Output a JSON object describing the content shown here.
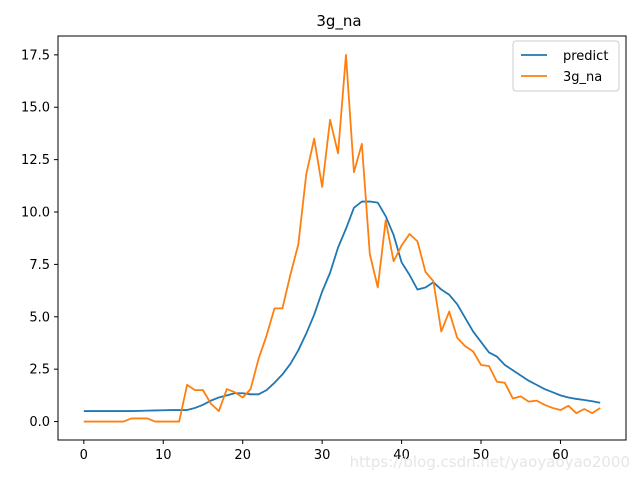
{
  "chart_data": {
    "type": "line",
    "title": "3g_na",
    "xlabel": "",
    "ylabel": "",
    "xlim": [
      -3.25,
      68.25
    ],
    "ylim": [
      -0.88,
      18.4
    ],
    "x_ticks": [
      0,
      10,
      20,
      30,
      40,
      50,
      60
    ],
    "y_ticks": [
      0.0,
      2.5,
      5.0,
      7.5,
      10.0,
      12.5,
      15.0,
      17.5
    ],
    "y_tick_labels": [
      "0.0",
      "2.5",
      "5.0",
      "7.5",
      "10.0",
      "12.5",
      "15.0",
      "17.5"
    ],
    "grid": false,
    "legend_position": "top-right",
    "series": [
      {
        "name": "predict",
        "color": "#1f77b4",
        "x": [
          0,
          1,
          2,
          3,
          4,
          5,
          6,
          7,
          8,
          9,
          10,
          11,
          12,
          13,
          14,
          15,
          16,
          17,
          18,
          19,
          20,
          21,
          22,
          23,
          24,
          25,
          26,
          27,
          28,
          29,
          30,
          31,
          32,
          33,
          34,
          35,
          36,
          37,
          38,
          39,
          40,
          41,
          42,
          43,
          44,
          45,
          46,
          47,
          48,
          49,
          50,
          51,
          52,
          53,
          54,
          55,
          56,
          57,
          58,
          59,
          60,
          61,
          62,
          63,
          64,
          65
        ],
        "y": [
          0.5,
          0.5,
          0.5,
          0.5,
          0.5,
          0.5,
          0.5,
          0.51,
          0.52,
          0.53,
          0.54,
          0.55,
          0.55,
          0.55,
          0.65,
          0.8,
          1.0,
          1.15,
          1.25,
          1.35,
          1.35,
          1.3,
          1.3,
          1.5,
          1.85,
          2.25,
          2.75,
          3.4,
          4.2,
          5.1,
          6.2,
          7.1,
          8.3,
          9.2,
          10.2,
          10.5,
          10.5,
          10.45,
          9.8,
          8.9,
          7.6,
          7.0,
          6.3,
          6.4,
          6.65,
          6.3,
          6.05,
          5.6,
          4.95,
          4.3,
          3.8,
          3.3,
          3.1,
          2.7,
          2.45,
          2.2,
          1.95,
          1.75,
          1.55,
          1.4,
          1.25,
          1.15,
          1.08,
          1.03,
          0.97,
          0.9
        ]
      },
      {
        "name": "3g_na",
        "color": "#ff7f0e",
        "x": [
          0,
          1,
          2,
          3,
          4,
          5,
          6,
          7,
          8,
          9,
          10,
          11,
          12,
          13,
          14,
          15,
          16,
          17,
          18,
          19,
          20,
          21,
          22,
          23,
          24,
          25,
          26,
          27,
          28,
          29,
          30,
          31,
          32,
          33,
          34,
          35,
          36,
          37,
          38,
          39,
          40,
          41,
          42,
          43,
          44,
          45,
          46,
          47,
          48,
          49,
          50,
          51,
          52,
          53,
          54,
          55,
          56,
          57,
          58,
          59,
          60,
          61,
          62,
          63,
          64,
          65
        ],
        "y": [
          0.0,
          0.0,
          0.0,
          0.0,
          0.0,
          0.0,
          0.15,
          0.15,
          0.15,
          0.0,
          0.0,
          0.0,
          0.0,
          1.75,
          1.5,
          1.5,
          0.85,
          0.5,
          1.55,
          1.4,
          1.15,
          1.55,
          3.0,
          4.1,
          5.4,
          5.4,
          7.0,
          8.45,
          11.8,
          13.5,
          11.2,
          14.4,
          12.8,
          17.5,
          11.9,
          13.25,
          8.0,
          6.4,
          9.6,
          7.65,
          8.4,
          8.95,
          8.6,
          7.15,
          6.7,
          4.3,
          5.25,
          4.0,
          3.6,
          3.35,
          2.7,
          2.65,
          1.9,
          1.85,
          1.1,
          1.2,
          0.95,
          1.0,
          0.8,
          0.65,
          0.55,
          0.75,
          0.4,
          0.6,
          0.4,
          0.65
        ]
      }
    ]
  },
  "watermark": {
    "text": "https://blog.csdn.net/yaoyaoyao2000",
    "color": "#e6e6e6"
  }
}
